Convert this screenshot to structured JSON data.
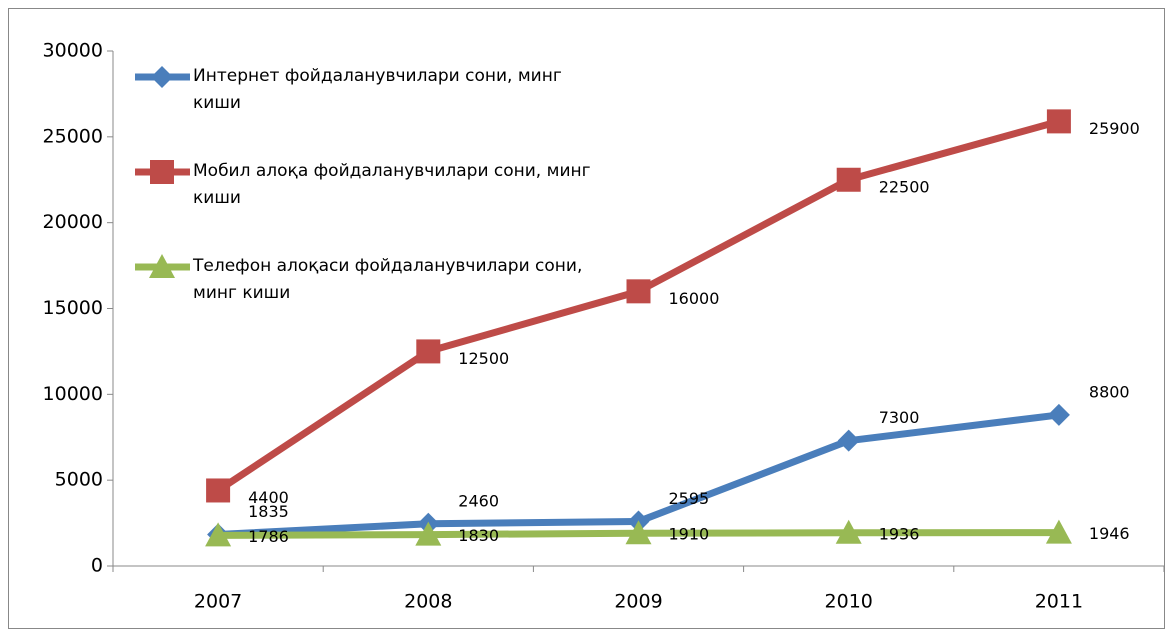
{
  "chart_data": {
    "type": "line",
    "categories": [
      "2007",
      "2008",
      "2009",
      "2010",
      "2011"
    ],
    "series": [
      {
        "name": "Интернет фойдаланувчилари сони, минг киши",
        "color": "#4a7ebb",
        "marker": "diamond",
        "values": [
          1835,
          2460,
          2595,
          7300,
          8800
        ]
      },
      {
        "name": "Мобил алоқа фойдаланувчилари сони, минг киши",
        "color": "#be4b48",
        "marker": "square",
        "values": [
          4400,
          12500,
          16000,
          22500,
          25900
        ]
      },
      {
        "name": "Телефон алоқаси фойдаланувчилари сони, минг киши",
        "color": "#98b954",
        "marker": "triangle",
        "values": [
          1786,
          1830,
          1910,
          1936,
          1946
        ]
      }
    ],
    "ylim": [
      0,
      30000
    ],
    "yticks": [
      0,
      5000,
      10000,
      15000,
      20000,
      25000,
      30000
    ],
    "grid": false,
    "legend": "upper left"
  }
}
